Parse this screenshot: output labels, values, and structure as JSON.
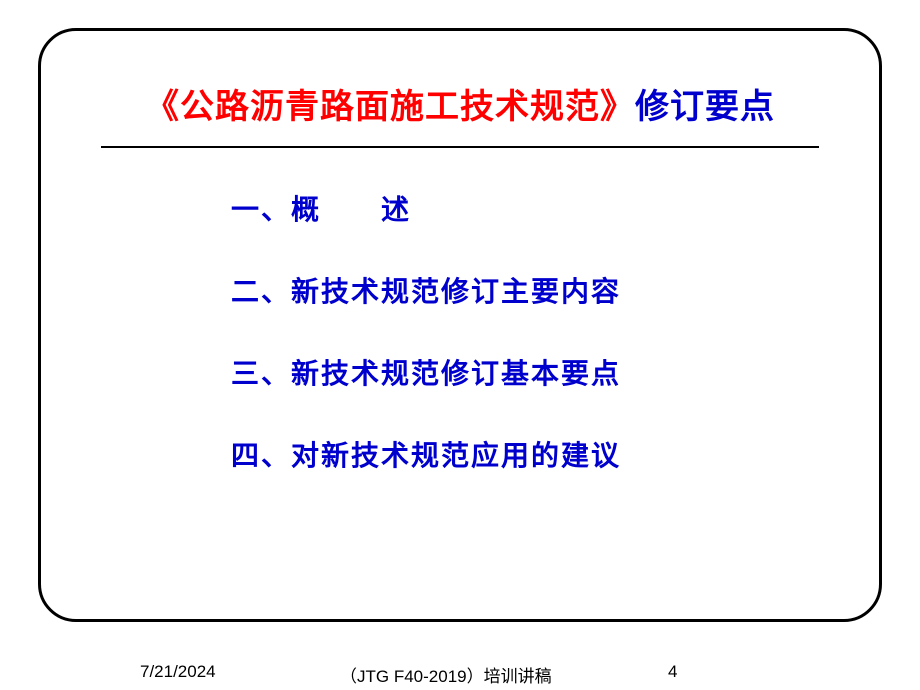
{
  "title": {
    "part1": "《公路沥青路面施工技术规范》",
    "part2": "修订要点"
  },
  "items": [
    "一、概　　述",
    "二、新技术规范修订主要内容",
    "三、新技术规范修订基本要点",
    "四、对新技术规范应用的建议"
  ],
  "footer": {
    "date": "7/21/2024",
    "center": "（JTG F40-2019）培训讲稿",
    "page": "4"
  },
  "colors": {
    "title_red": "#ff0000",
    "title_blue": "#0000cc",
    "item_blue": "#0000cc",
    "border": "#000000",
    "background": "#ffffff"
  },
  "typography": {
    "title_fontsize": 34,
    "item_fontsize": 28,
    "footer_fontsize": 17
  }
}
